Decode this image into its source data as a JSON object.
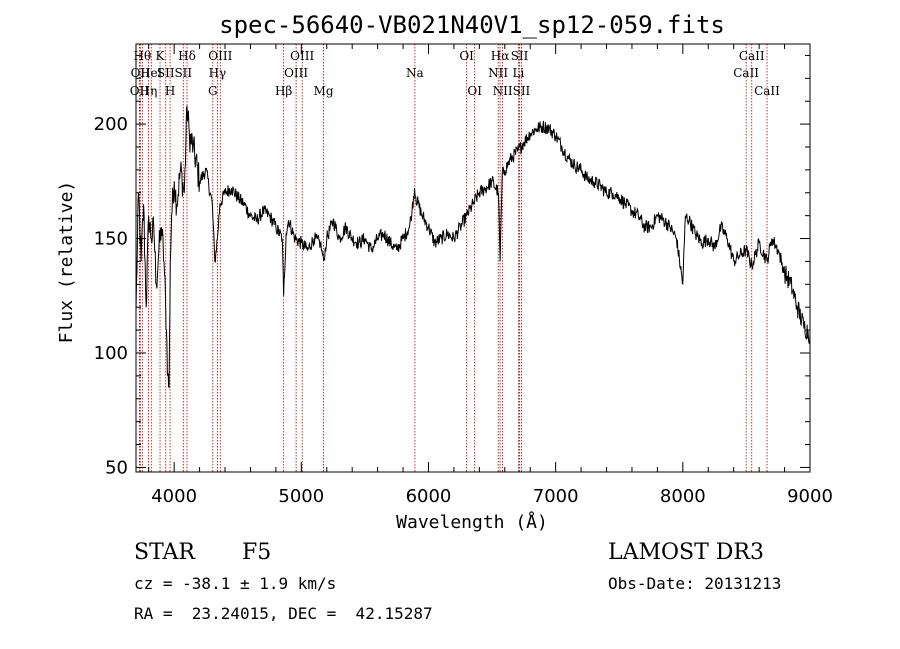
{
  "chart_data": {
    "type": "line",
    "title": "spec-56640-VB021N40V1_sp12-059.fits",
    "xlabel": "Wavelength (Å)",
    "ylabel": "Flux (relative)",
    "xlim": [
      3700,
      9000
    ],
    "ylim": [
      48,
      235
    ],
    "x_ticks": [
      4000,
      5000,
      6000,
      7000,
      8000,
      9000
    ],
    "x_tick_labels": [
      "4000",
      "5000",
      "6000",
      "7000",
      "8000",
      "9000"
    ],
    "y_ticks": [
      50,
      100,
      150,
      200
    ],
    "y_tick_labels": [
      "50",
      "100",
      "150",
      "200"
    ],
    "series": [
      {
        "name": "flux",
        "x": [
          3700,
          3720,
          3740,
          3760,
          3780,
          3800,
          3820,
          3840,
          3860,
          3880,
          3900,
          3920,
          3940,
          3950,
          3960,
          3970,
          3980,
          4000,
          4020,
          4050,
          4080,
          4101,
          4120,
          4150,
          4200,
          4250,
          4300,
          4320,
          4340,
          4360,
          4400,
          4450,
          4500,
          4550,
          4600,
          4650,
          4700,
          4750,
          4800,
          4850,
          4861,
          4880,
          4900,
          4950,
          5000,
          5050,
          5100,
          5150,
          5175,
          5200,
          5250,
          5300,
          5350,
          5400,
          5450,
          5500,
          5550,
          5600,
          5650,
          5700,
          5750,
          5800,
          5850,
          5870,
          5890,
          5900,
          5950,
          6000,
          6050,
          6100,
          6150,
          6200,
          6250,
          6300,
          6350,
          6400,
          6450,
          6500,
          6550,
          6563,
          6580,
          6600,
          6650,
          6700,
          6750,
          6800,
          6850,
          6900,
          6950,
          7000,
          7050,
          7100,
          7150,
          7200,
          7250,
          7300,
          7350,
          7400,
          7450,
          7500,
          7550,
          7600,
          7650,
          7700,
          7750,
          7800,
          7850,
          7900,
          7950,
          8000,
          8020,
          8050,
          8100,
          8150,
          8200,
          8250,
          8300,
          8350,
          8400,
          8450,
          8498,
          8542,
          8600,
          8662,
          8700,
          8750,
          8800,
          8850,
          8900,
          8950,
          9000
        ],
        "values": [
          118,
          170,
          140,
          165,
          120,
          160,
          150,
          155,
          130,
          145,
          155,
          140,
          110,
          90,
          85,
          140,
          160,
          175,
          165,
          180,
          170,
          208,
          195,
          190,
          175,
          180,
          165,
          140,
          150,
          165,
          170,
          172,
          168,
          165,
          160,
          158,
          162,
          160,
          155,
          150,
          125,
          152,
          158,
          150,
          148,
          145,
          150,
          148,
          140,
          150,
          158,
          150,
          155,
          150,
          148,
          150,
          145,
          150,
          152,
          148,
          145,
          150,
          155,
          162,
          172,
          168,
          160,
          155,
          148,
          150,
          152,
          150,
          155,
          160,
          165,
          170,
          172,
          175,
          170,
          140,
          178,
          180,
          185,
          188,
          192,
          196,
          198,
          199,
          198,
          195,
          190,
          185,
          182,
          180,
          176,
          175,
          173,
          170,
          170,
          168,
          165,
          162,
          160,
          155,
          155,
          160,
          158,
          155,
          150,
          130,
          160,
          158,
          152,
          148,
          150,
          146,
          155,
          150,
          140,
          143,
          145,
          138,
          148,
          140,
          150,
          145,
          135,
          130,
          120,
          112,
          108
        ]
      }
    ],
    "spectral_lines": [
      {
        "wavelength": 3727,
        "label": "OII",
        "row": 3
      },
      {
        "wavelength": 3734,
        "label": "OII",
        "row": 2
      },
      {
        "wavelength": 3750,
        "label": "Hθ",
        "row": 1
      },
      {
        "wavelength": 3798,
        "label": "Hη",
        "row": 3
      },
      {
        "wavelength": 3820,
        "label": "HeI",
        "row": 2
      },
      {
        "wavelength": 3889,
        "label": "K",
        "row": 1
      },
      {
        "wavelength": 3934,
        "label": "SII",
        "row": 2
      },
      {
        "wavelength": 3968,
        "label": "H",
        "row": 3
      },
      {
        "wavelength": 4101,
        "label": "Hδ",
        "row": 1
      },
      {
        "wavelength": 4072,
        "label": "SII",
        "row": 2
      },
      {
        "wavelength": 4304,
        "label": "G",
        "row": 3
      },
      {
        "wavelength": 4340,
        "label": "Hγ",
        "row": 2
      },
      {
        "wavelength": 4363,
        "label": "OIII",
        "row": 1
      },
      {
        "wavelength": 4861,
        "label": "Hβ",
        "row": 3
      },
      {
        "wavelength": 4959,
        "label": "OIII",
        "row": 2
      },
      {
        "wavelength": 5007,
        "label": "OIII",
        "row": 1
      },
      {
        "wavelength": 5175,
        "label": "Mg",
        "row": 3
      },
      {
        "wavelength": 5893,
        "label": "Na",
        "row": 2
      },
      {
        "wavelength": 6300,
        "label": "OI",
        "row": 1
      },
      {
        "wavelength": 6363,
        "label": "OI",
        "row": 3
      },
      {
        "wavelength": 6548,
        "label": "NII",
        "row": 2
      },
      {
        "wavelength": 6563,
        "label": "Hα",
        "row": 1
      },
      {
        "wavelength": 6583,
        "label": "NII",
        "row": 3
      },
      {
        "wavelength": 6707,
        "label": "Li",
        "row": 2
      },
      {
        "wavelength": 6716,
        "label": "SII",
        "row": 1
      },
      {
        "wavelength": 6731,
        "label": "SII",
        "row": 3
      },
      {
        "wavelength": 8498,
        "label": "CaII",
        "row": 2
      },
      {
        "wavelength": 8542,
        "label": "CaII",
        "row": 1
      },
      {
        "wavelength": 8662,
        "label": "CaII",
        "row": 3
      }
    ],
    "line_color": "#000000",
    "marker_color": "#c00000"
  },
  "info": {
    "object_type": "STAR",
    "subclass": "F5",
    "survey": "LAMOST DR3",
    "redshift": "cz = -38.1 ± 1.9 km/s",
    "obs_date": "Obs-Date: 20131213",
    "coords": "RA =  23.24015, DEC =  42.15287"
  }
}
